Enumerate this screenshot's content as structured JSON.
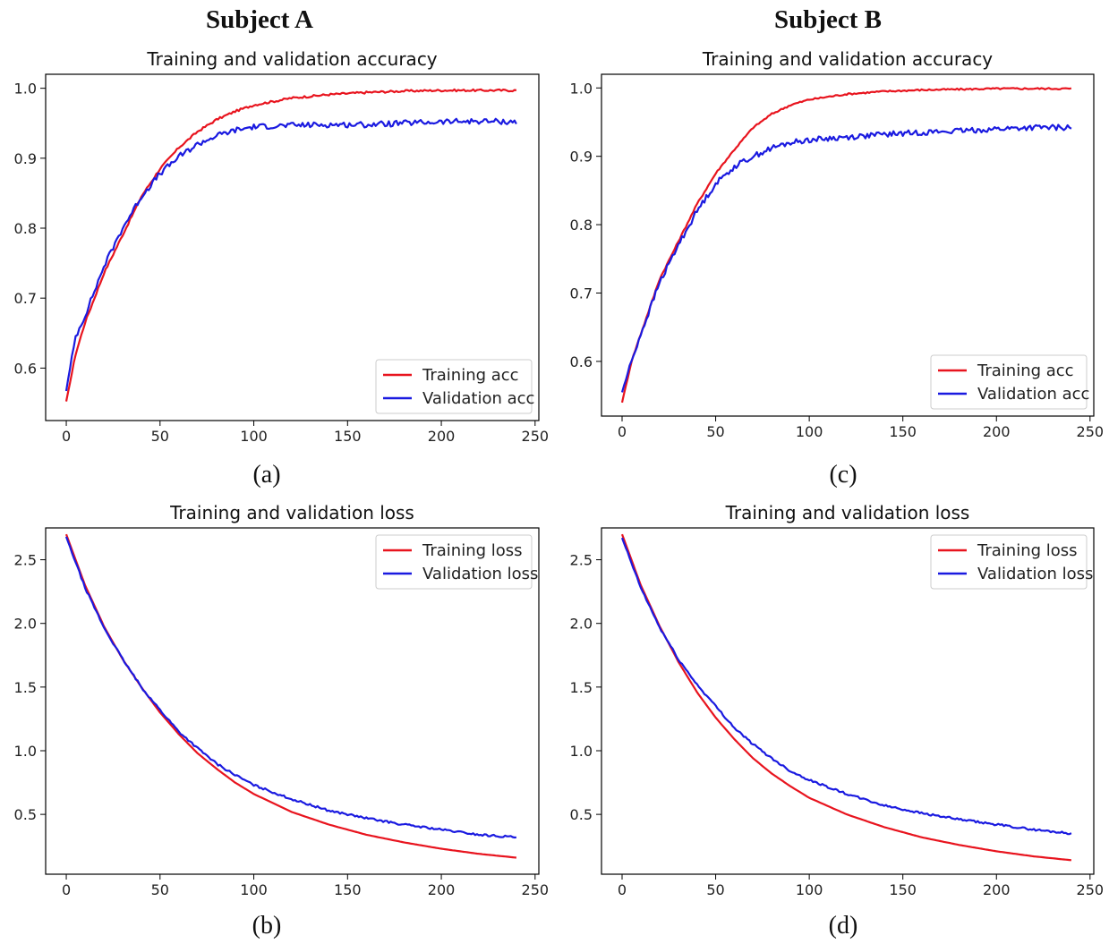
{
  "figure": {
    "subject_a": "Subject A",
    "subject_b": "Subject B",
    "labels": [
      "(a)",
      "(c)",
      "(b)",
      "(d)"
    ]
  },
  "colors": {
    "training": "#e8141e",
    "validation": "#1a1ae0"
  },
  "chart_data": [
    {
      "id": "a",
      "type": "line",
      "title": "Training and validation accuracy",
      "xlabel": "",
      "ylabel": "",
      "xlim": [
        -11,
        252
      ],
      "ylim": [
        0.525,
        1.02
      ],
      "xticks": [
        0,
        50,
        100,
        150,
        200,
        250
      ],
      "yticks": [
        0.6,
        0.7,
        0.8,
        0.9,
        1.0
      ],
      "yformat": 1,
      "legend": "bottom-right",
      "series": [
        {
          "name": "Training acc",
          "color": "#e8141e",
          "noise": 0.0015,
          "x": [
            0,
            5,
            10,
            20,
            30,
            40,
            50,
            60,
            70,
            80,
            90,
            100,
            120,
            140,
            160,
            180,
            200,
            220,
            240
          ],
          "y": [
            0.552,
            0.62,
            0.665,
            0.735,
            0.79,
            0.845,
            0.885,
            0.915,
            0.938,
            0.955,
            0.967,
            0.976,
            0.986,
            0.991,
            0.994,
            0.996,
            0.997,
            0.997,
            0.997
          ]
        },
        {
          "name": "Validation acc",
          "color": "#1a1ae0",
          "noise": 0.004,
          "x": [
            0,
            5,
            10,
            20,
            30,
            40,
            50,
            60,
            70,
            80,
            90,
            100,
            120,
            140,
            160,
            180,
            200,
            220,
            240
          ],
          "y": [
            0.568,
            0.645,
            0.675,
            0.745,
            0.8,
            0.845,
            0.878,
            0.902,
            0.92,
            0.932,
            0.94,
            0.945,
            0.947,
            0.948,
            0.948,
            0.95,
            0.952,
            0.953,
            0.952
          ]
        }
      ]
    },
    {
      "id": "c",
      "type": "line",
      "title": "Training and validation accuracy",
      "xlabel": "",
      "ylabel": "",
      "xlim": [
        -11,
        252
      ],
      "ylim": [
        0.52,
        1.02
      ],
      "xticks": [
        0,
        50,
        100,
        150,
        200,
        250
      ],
      "yticks": [
        0.6,
        0.7,
        0.8,
        0.9,
        1.0
      ],
      "yformat": 1,
      "legend": "bottom-right",
      "series": [
        {
          "name": "Training acc",
          "color": "#e8141e",
          "noise": 0.0012,
          "x": [
            0,
            5,
            10,
            20,
            30,
            40,
            50,
            60,
            70,
            80,
            90,
            100,
            120,
            140,
            160,
            180,
            200,
            220,
            240
          ],
          "y": [
            0.54,
            0.6,
            0.64,
            0.72,
            0.775,
            0.83,
            0.875,
            0.91,
            0.942,
            0.962,
            0.975,
            0.983,
            0.991,
            0.995,
            0.997,
            0.998,
            0.999,
            0.999,
            0.999
          ]
        },
        {
          "name": "Validation acc",
          "color": "#1a1ae0",
          "noise": 0.004,
          "x": [
            0,
            5,
            10,
            20,
            30,
            40,
            50,
            60,
            70,
            80,
            90,
            100,
            120,
            140,
            160,
            180,
            200,
            220,
            240
          ],
          "y": [
            0.555,
            0.6,
            0.64,
            0.715,
            0.77,
            0.82,
            0.86,
            0.885,
            0.9,
            0.912,
            0.92,
            0.924,
            0.928,
            0.932,
            0.935,
            0.937,
            0.94,
            0.942,
            0.942
          ]
        }
      ]
    },
    {
      "id": "b",
      "type": "line",
      "title": "Training and validation loss",
      "xlabel": "",
      "ylabel": "",
      "xlim": [
        -11,
        252
      ],
      "ylim": [
        0.03,
        2.75
      ],
      "xticks": [
        0,
        50,
        100,
        150,
        200,
        250
      ],
      "yticks": [
        0.5,
        1.0,
        1.5,
        2.0,
        2.5
      ],
      "yformat": 1,
      "legend": "top-right",
      "series": [
        {
          "name": "Training loss",
          "color": "#e8141e",
          "noise": 0.0,
          "x": [
            0,
            10,
            20,
            30,
            40,
            50,
            60,
            70,
            80,
            90,
            100,
            120,
            140,
            160,
            180,
            200,
            220,
            240
          ],
          "y": [
            2.7,
            2.3,
            1.98,
            1.72,
            1.5,
            1.3,
            1.13,
            0.98,
            0.86,
            0.75,
            0.66,
            0.52,
            0.42,
            0.34,
            0.28,
            0.23,
            0.19,
            0.16
          ]
        },
        {
          "name": "Validation loss",
          "color": "#1a1ae0",
          "noise": 0.008,
          "x": [
            0,
            10,
            20,
            30,
            40,
            50,
            60,
            70,
            80,
            90,
            100,
            120,
            140,
            160,
            180,
            200,
            220,
            240
          ],
          "y": [
            2.68,
            2.28,
            1.97,
            1.72,
            1.5,
            1.32,
            1.15,
            1.02,
            0.9,
            0.81,
            0.73,
            0.62,
            0.53,
            0.47,
            0.42,
            0.38,
            0.34,
            0.32
          ]
        }
      ]
    },
    {
      "id": "d",
      "type": "line",
      "title": "Training and validation loss",
      "xlabel": "",
      "ylabel": "",
      "xlim": [
        -11,
        252
      ],
      "ylim": [
        0.03,
        2.75
      ],
      "xticks": [
        0,
        50,
        100,
        150,
        200,
        250
      ],
      "yticks": [
        0.5,
        1.0,
        1.5,
        2.0,
        2.5
      ],
      "yformat": 1,
      "legend": "top-right",
      "series": [
        {
          "name": "Training loss",
          "color": "#e8141e",
          "noise": 0.0,
          "x": [
            0,
            10,
            20,
            30,
            40,
            50,
            60,
            70,
            80,
            90,
            100,
            120,
            140,
            160,
            180,
            200,
            220,
            240
          ],
          "y": [
            2.7,
            2.3,
            1.98,
            1.7,
            1.46,
            1.26,
            1.09,
            0.94,
            0.82,
            0.72,
            0.63,
            0.5,
            0.4,
            0.32,
            0.26,
            0.21,
            0.17,
            0.14
          ]
        },
        {
          "name": "Validation loss",
          "color": "#1a1ae0",
          "noise": 0.008,
          "x": [
            0,
            10,
            20,
            30,
            40,
            50,
            60,
            70,
            80,
            90,
            100,
            120,
            140,
            160,
            180,
            200,
            220,
            240
          ],
          "y": [
            2.67,
            2.28,
            1.97,
            1.72,
            1.52,
            1.35,
            1.18,
            1.05,
            0.94,
            0.84,
            0.77,
            0.66,
            0.57,
            0.51,
            0.46,
            0.42,
            0.38,
            0.35
          ]
        }
      ]
    }
  ]
}
